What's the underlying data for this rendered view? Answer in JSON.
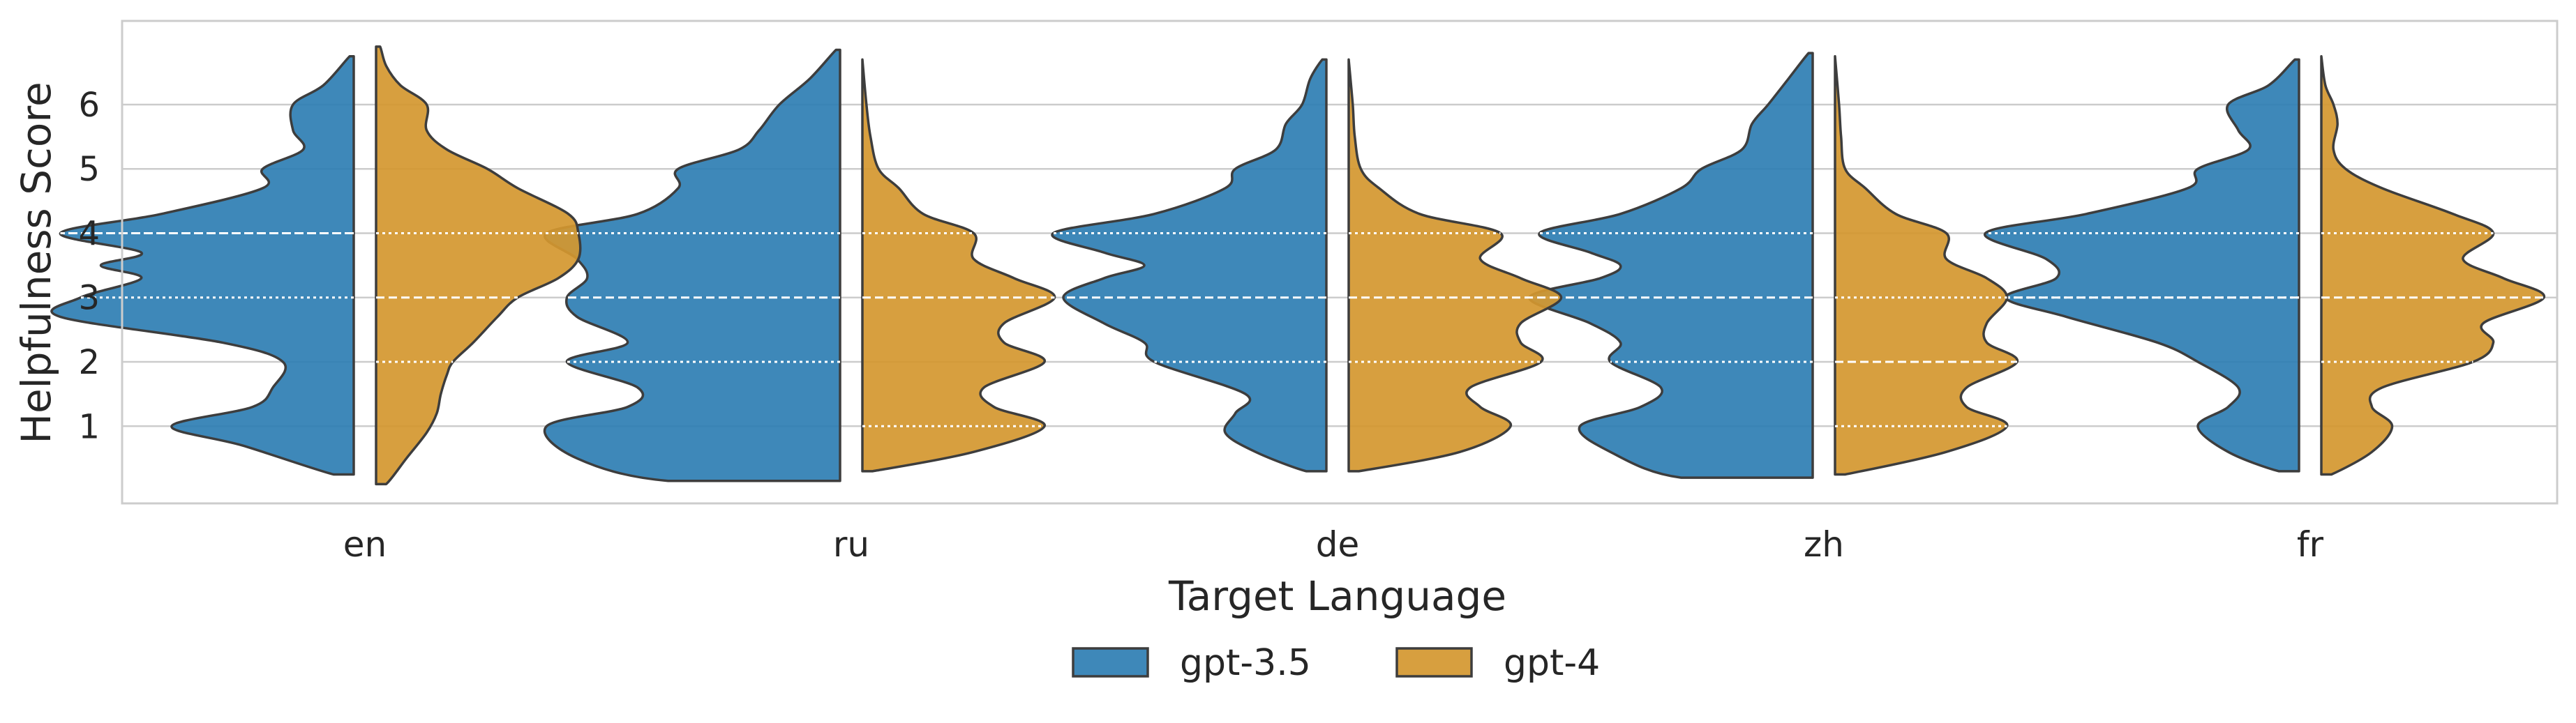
{
  "chart_data": {
    "type": "violin",
    "split": true,
    "xlabel": "Target Language",
    "ylabel": "Helpfulness Score",
    "categories": [
      "en",
      "ru",
      "de",
      "zh",
      "fr"
    ],
    "yticks": [
      1,
      2,
      3,
      4,
      5,
      6
    ],
    "ylim": [
      -0.2,
      7.3
    ],
    "grid": true,
    "legend_position": "bottom-center",
    "series": [
      {
        "name": "gpt-3.5",
        "color": "#2e7eb3",
        "side": "left",
        "violins": [
          {
            "range": [
              0.25,
              6.75
            ],
            "quartiles": [
              3.0,
              4.0,
              4.0
            ],
            "profile": [
              [
                0.25,
                0.1
              ],
              [
                0.7,
                0.55
              ],
              [
                1.0,
                0.9
              ],
              [
                1.3,
                0.5
              ],
              [
                1.6,
                0.4
              ],
              [
                2.0,
                0.35
              ],
              [
                2.3,
                0.65
              ],
              [
                2.7,
                1.45
              ],
              [
                3.0,
                1.35
              ],
              [
                3.3,
                1.05
              ],
              [
                3.5,
                1.25
              ],
              [
                3.7,
                1.05
              ],
              [
                4.0,
                1.45
              ],
              [
                4.3,
                0.95
              ],
              [
                4.7,
                0.45
              ],
              [
                5.0,
                0.45
              ],
              [
                5.3,
                0.25
              ],
              [
                5.6,
                0.3
              ],
              [
                6.0,
                0.3
              ],
              [
                6.3,
                0.15
              ],
              [
                6.75,
                0.02
              ]
            ]
          },
          {
            "range": [
              0.15,
              6.85
            ],
            "quartiles": [
              2.0,
              3.0,
              4.0
            ],
            "profile": [
              [
                0.15,
                0.85
              ],
              [
                0.5,
                1.3
              ],
              [
                1.0,
                1.45
              ],
              [
                1.3,
                1.05
              ],
              [
                1.6,
                1.0
              ],
              [
                2.0,
                1.35
              ],
              [
                2.3,
                1.05
              ],
              [
                2.7,
                1.3
              ],
              [
                3.0,
                1.35
              ],
              [
                3.3,
                1.25
              ],
              [
                3.6,
                1.3
              ],
              [
                4.0,
                1.45
              ],
              [
                4.3,
                1.0
              ],
              [
                4.7,
                0.8
              ],
              [
                5.0,
                0.8
              ],
              [
                5.3,
                0.5
              ],
              [
                5.6,
                0.4
              ],
              [
                6.0,
                0.3
              ],
              [
                6.4,
                0.15
              ],
              [
                6.85,
                0.02
              ]
            ]
          },
          {
            "range": [
              0.3,
              6.7
            ],
            "quartiles": [
              2.0,
              3.0,
              4.0
            ],
            "profile": [
              [
                0.3,
                0.1
              ],
              [
                0.6,
                0.35
              ],
              [
                0.9,
                0.5
              ],
              [
                1.2,
                0.45
              ],
              [
                1.5,
                0.4
              ],
              [
                2.0,
                0.85
              ],
              [
                2.3,
                0.9
              ],
              [
                2.6,
                1.1
              ],
              [
                3.0,
                1.3
              ],
              [
                3.3,
                1.1
              ],
              [
                3.5,
                0.9
              ],
              [
                3.7,
                1.1
              ],
              [
                4.0,
                1.35
              ],
              [
                4.3,
                0.85
              ],
              [
                4.7,
                0.5
              ],
              [
                5.0,
                0.45
              ],
              [
                5.3,
                0.25
              ],
              [
                5.7,
                0.2
              ],
              [
                6.0,
                0.12
              ],
              [
                6.4,
                0.08
              ],
              [
                6.7,
                0.02
              ]
            ]
          },
          {
            "range": [
              0.2,
              6.8
            ],
            "quartiles": [
              2.0,
              3.0,
              4.0
            ],
            "profile": [
              [
                0.2,
                0.65
              ],
              [
                0.6,
                1.0
              ],
              [
                1.0,
                1.15
              ],
              [
                1.3,
                0.85
              ],
              [
                1.6,
                0.75
              ],
              [
                2.0,
                1.0
              ],
              [
                2.3,
                0.95
              ],
              [
                2.6,
                1.1
              ],
              [
                3.0,
                1.4
              ],
              [
                3.3,
                1.05
              ],
              [
                3.5,
                0.95
              ],
              [
                3.7,
                1.1
              ],
              [
                4.0,
                1.35
              ],
              [
                4.3,
                0.95
              ],
              [
                4.7,
                0.65
              ],
              [
                5.0,
                0.55
              ],
              [
                5.3,
                0.35
              ],
              [
                5.7,
                0.3
              ],
              [
                6.0,
                0.22
              ],
              [
                6.4,
                0.12
              ],
              [
                6.8,
                0.02
              ]
            ]
          },
          {
            "range": [
              0.3,
              6.7
            ],
            "quartiles": [
              3.0,
              3.0,
              4.0
            ],
            "profile": [
              [
                0.3,
                0.1
              ],
              [
                0.6,
                0.35
              ],
              [
                1.0,
                0.5
              ],
              [
                1.3,
                0.35
              ],
              [
                1.6,
                0.3
              ],
              [
                2.0,
                0.5
              ],
              [
                2.3,
                0.7
              ],
              [
                2.7,
                1.15
              ],
              [
                3.0,
                1.45
              ],
              [
                3.3,
                1.2
              ],
              [
                3.6,
                1.25
              ],
              [
                4.0,
                1.55
              ],
              [
                4.3,
                1.05
              ],
              [
                4.7,
                0.55
              ],
              [
                5.0,
                0.5
              ],
              [
                5.3,
                0.25
              ],
              [
                5.6,
                0.3
              ],
              [
                6.0,
                0.35
              ],
              [
                6.3,
                0.15
              ],
              [
                6.7,
                0.02
              ]
            ]
          }
        ]
      },
      {
        "name": "gpt-4",
        "color": "#d4972f",
        "side": "right",
        "violins": [
          {
            "range": [
              0.1,
              6.9
            ],
            "quartiles": [
              2.0,
              3.0,
              4.0
            ],
            "profile": [
              [
                0.1,
                0.05
              ],
              [
                0.5,
                0.15
              ],
              [
                0.9,
                0.25
              ],
              [
                1.2,
                0.3
              ],
              [
                1.5,
                0.32
              ],
              [
                1.8,
                0.35
              ],
              [
                2.0,
                0.38
              ],
              [
                2.3,
                0.48
              ],
              [
                2.7,
                0.6
              ],
              [
                3.0,
                0.7
              ],
              [
                3.3,
                0.9
              ],
              [
                3.6,
                1.0
              ],
              [
                4.0,
                1.0
              ],
              [
                4.3,
                0.95
              ],
              [
                4.7,
                0.7
              ],
              [
                5.0,
                0.55
              ],
              [
                5.3,
                0.35
              ],
              [
                5.6,
                0.25
              ],
              [
                6.0,
                0.25
              ],
              [
                6.3,
                0.12
              ],
              [
                6.6,
                0.05
              ],
              [
                6.9,
                0.02
              ]
            ]
          },
          {
            "range": [
              0.3,
              6.7
            ],
            "quartiles": [
              1.0,
              3.0,
              4.0
            ],
            "profile": [
              [
                0.3,
                0.05
              ],
              [
                0.6,
                0.55
              ],
              [
                1.0,
                0.9
              ],
              [
                1.3,
                0.65
              ],
              [
                1.6,
                0.6
              ],
              [
                2.0,
                0.9
              ],
              [
                2.3,
                0.7
              ],
              [
                2.6,
                0.7
              ],
              [
                3.0,
                0.95
              ],
              [
                3.3,
                0.75
              ],
              [
                3.6,
                0.55
              ],
              [
                4.0,
                0.55
              ],
              [
                4.3,
                0.3
              ],
              [
                4.7,
                0.18
              ],
              [
                5.0,
                0.08
              ],
              [
                5.5,
                0.04
              ],
              [
                6.0,
                0.02
              ],
              [
                6.7,
                0.0
              ]
            ]
          },
          {
            "range": [
              0.3,
              6.7
            ],
            "quartiles": [
              2.0,
              3.0,
              4.0
            ],
            "profile": [
              [
                0.3,
                0.05
              ],
              [
                0.6,
                0.55
              ],
              [
                1.0,
                0.8
              ],
              [
                1.3,
                0.65
              ],
              [
                1.6,
                0.6
              ],
              [
                2.0,
                0.95
              ],
              [
                2.3,
                0.85
              ],
              [
                2.6,
                0.85
              ],
              [
                3.0,
                1.05
              ],
              [
                3.3,
                0.85
              ],
              [
                3.6,
                0.65
              ],
              [
                4.0,
                0.75
              ],
              [
                4.3,
                0.35
              ],
              [
                4.7,
                0.15
              ],
              [
                5.0,
                0.06
              ],
              [
                5.5,
                0.03
              ],
              [
                6.0,
                0.02
              ],
              [
                6.7,
                0.0
              ]
            ]
          },
          {
            "range": [
              0.25,
              6.75
            ],
            "quartiles": [
              1.0,
              2.0,
              3.0
            ],
            "profile": [
              [
                0.25,
                0.05
              ],
              [
                0.6,
                0.55
              ],
              [
                1.0,
                0.85
              ],
              [
                1.3,
                0.65
              ],
              [
                1.6,
                0.65
              ],
              [
                2.0,
                0.9
              ],
              [
                2.3,
                0.75
              ],
              [
                2.6,
                0.75
              ],
              [
                3.0,
                0.85
              ],
              [
                3.3,
                0.75
              ],
              [
                3.6,
                0.55
              ],
              [
                4.0,
                0.55
              ],
              [
                4.3,
                0.3
              ],
              [
                4.7,
                0.15
              ],
              [
                5.0,
                0.05
              ],
              [
                5.5,
                0.03
              ],
              [
                6.0,
                0.02
              ],
              [
                6.75,
                0.0
              ]
            ]
          },
          {
            "range": [
              0.25,
              6.75
            ],
            "quartiles": [
              2.0,
              3.0,
              4.0
            ],
            "profile": [
              [
                0.25,
                0.05
              ],
              [
                0.6,
                0.25
              ],
              [
                1.0,
                0.35
              ],
              [
                1.3,
                0.25
              ],
              [
                1.6,
                0.3
              ],
              [
                2.0,
                0.75
              ],
              [
                2.3,
                0.85
              ],
              [
                2.6,
                0.8
              ],
              [
                3.0,
                1.1
              ],
              [
                3.3,
                0.9
              ],
              [
                3.6,
                0.7
              ],
              [
                4.0,
                0.85
              ],
              [
                4.3,
                0.65
              ],
              [
                4.7,
                0.3
              ],
              [
                5.0,
                0.12
              ],
              [
                5.3,
                0.06
              ],
              [
                5.7,
                0.08
              ],
              [
                6.0,
                0.06
              ],
              [
                6.3,
                0.02
              ],
              [
                6.75,
                0.0
              ]
            ]
          }
        ]
      }
    ]
  }
}
